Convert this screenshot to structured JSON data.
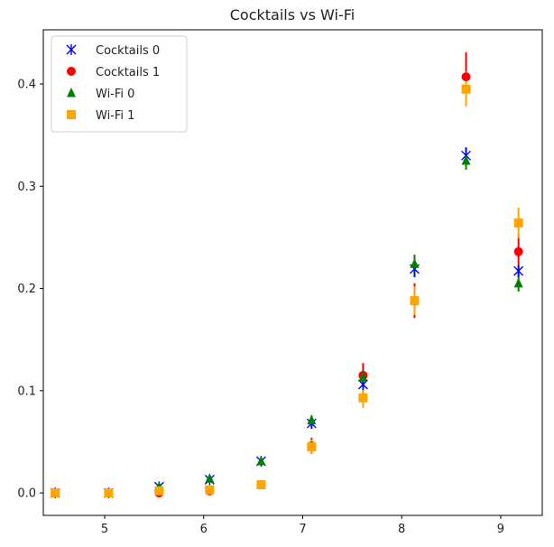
{
  "chart_data": {
    "type": "scatter",
    "title": "Cocktails vs Wi-Fi",
    "xlabel": "",
    "ylabel": "",
    "xlim": [
      4.38,
      9.42
    ],
    "ylim": [
      -0.022,
      0.453
    ],
    "xticks": [
      5,
      6,
      7,
      8,
      9
    ],
    "yticks": [
      0.0,
      0.1,
      0.2,
      0.3,
      0.4
    ],
    "ytick_labels": [
      "0.0",
      "0.1",
      "0.2",
      "0.3",
      "0.4"
    ],
    "xtick_labels": [
      "5",
      "6",
      "7",
      "8",
      "9"
    ],
    "grid": false,
    "legend_position": "top-left",
    "series": [
      {
        "name": "Cocktails 0",
        "marker": "x-star",
        "color": "#0000ff",
        "x": [
          4.5,
          5.04,
          5.55,
          6.06,
          6.58,
          7.09,
          7.61,
          8.13,
          8.65,
          9.18
        ],
        "y": [
          0.0,
          0.0,
          0.006,
          0.013,
          0.031,
          0.068,
          0.106,
          0.219,
          0.33,
          0.217
        ],
        "err": [
          0.0,
          0.0,
          0.002,
          0.003,
          0.003,
          0.005,
          0.009,
          0.008,
          0.008,
          0.006
        ]
      },
      {
        "name": "Cocktails 1",
        "marker": "circle",
        "color": "#ff0000",
        "x": [
          4.5,
          5.04,
          5.55,
          6.06,
          6.58,
          7.09,
          7.61,
          8.13,
          8.65,
          9.18
        ],
        "y": [
          0.0,
          0.0,
          0.0,
          0.002,
          0.008,
          0.046,
          0.115,
          0.188,
          0.407,
          0.236
        ],
        "err": [
          0.0,
          0.0,
          0.002,
          0.004,
          0.003,
          0.008,
          0.012,
          0.017,
          0.024,
          0.016
        ]
      },
      {
        "name": "Wi-Fi 0",
        "marker": "triangle",
        "color": "#008000",
        "x": [
          4.5,
          5.04,
          5.55,
          6.06,
          6.58,
          7.09,
          7.61,
          8.13,
          8.65,
          9.18
        ],
        "y": [
          0.0,
          0.0,
          0.006,
          0.014,
          0.031,
          0.071,
          0.113,
          0.224,
          0.325,
          0.205
        ],
        "err": [
          0.0,
          0.0,
          0.002,
          0.003,
          0.003,
          0.005,
          0.008,
          0.009,
          0.009,
          0.008
        ]
      },
      {
        "name": "Wi-Fi 1",
        "marker": "square",
        "color": "#ffa500",
        "x": [
          4.5,
          5.04,
          5.55,
          6.06,
          6.58,
          7.09,
          7.61,
          8.13,
          8.65,
          9.18
        ],
        "y": [
          0.0,
          0.0,
          0.002,
          0.003,
          0.008,
          0.045,
          0.093,
          0.188,
          0.395,
          0.264
        ],
        "err": [
          0.0,
          0.0,
          0.002,
          0.003,
          0.003,
          0.007,
          0.01,
          0.014,
          0.017,
          0.015
        ]
      }
    ]
  }
}
